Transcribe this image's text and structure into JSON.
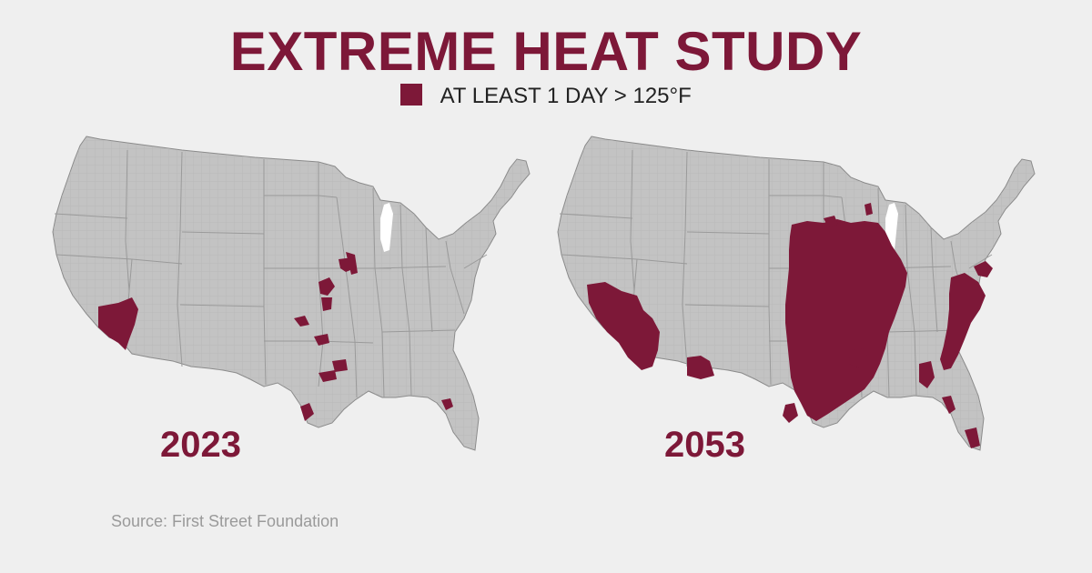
{
  "title": "EXTREME HEAT STUDY",
  "legend": {
    "label": "AT LEAST 1 DAY > 125°F",
    "color": "#7d1838"
  },
  "maps": [
    {
      "year": "2023"
    },
    {
      "year": "2053"
    }
  ],
  "source": "Source: First Street Foundation",
  "colors": {
    "land": "#c3c3c3",
    "border": "#a0a0a0",
    "outline": "#8a8a8a",
    "lake": "#ffffff",
    "heat": "#7d1838",
    "background": "#efefef"
  }
}
